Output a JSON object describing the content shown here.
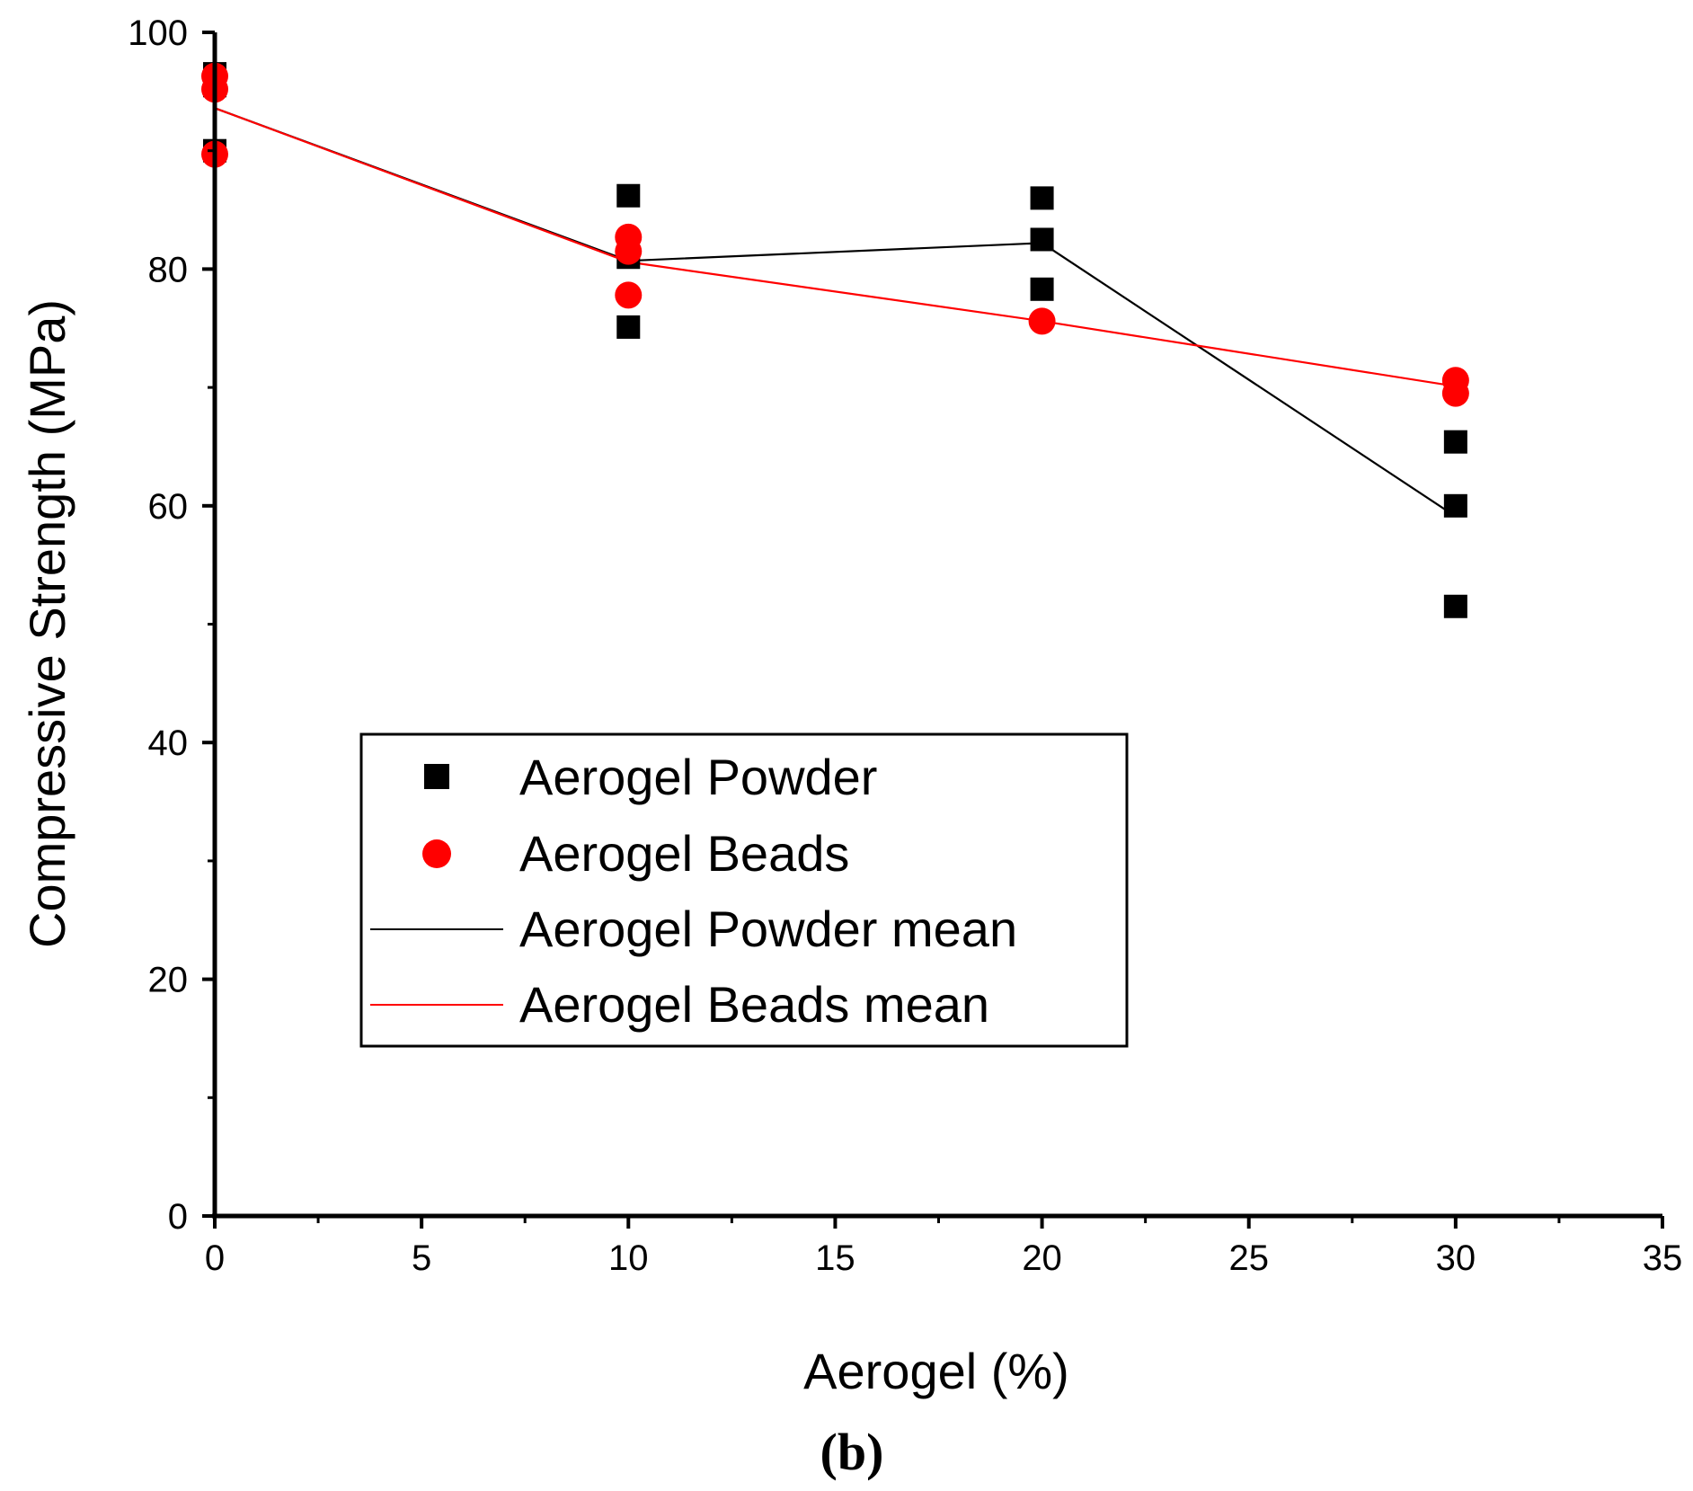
{
  "chart_data": {
    "type": "scatter",
    "title": "",
    "xlabel": "Aerogel (%)",
    "ylabel": "Compressive Strength (MPa)",
    "xlim": [
      0,
      35
    ],
    "ylim": [
      0,
      100
    ],
    "x_ticks": [
      "0",
      "5",
      "10",
      "15",
      "20",
      "25",
      "30",
      "35"
    ],
    "y_ticks": [
      "0",
      "20",
      "40",
      "60",
      "80",
      "100"
    ],
    "caption": "(b)",
    "colors": {
      "powder": "#000000",
      "beads": "#ff0000"
    },
    "series": [
      {
        "name": "Aerogel Powder",
        "kind": "points",
        "marker": "square",
        "points": [
          {
            "x": 0,
            "y": 96.5
          },
          {
            "x": 0,
            "y": 95.5
          },
          {
            "x": 0,
            "y": 90
          },
          {
            "x": 10,
            "y": 86.2
          },
          {
            "x": 10,
            "y": 81
          },
          {
            "x": 10,
            "y": 75.1
          },
          {
            "x": 20,
            "y": 86
          },
          {
            "x": 20,
            "y": 82.5
          },
          {
            "x": 20,
            "y": 78.3
          },
          {
            "x": 30,
            "y": 65.4
          },
          {
            "x": 30,
            "y": 60
          },
          {
            "x": 30,
            "y": 51.5
          }
        ]
      },
      {
        "name": "Aerogel Beads",
        "kind": "points",
        "marker": "circle",
        "points": [
          {
            "x": 0,
            "y": 96.3
          },
          {
            "x": 0,
            "y": 95.2
          },
          {
            "x": 0,
            "y": 89.7
          },
          {
            "x": 10,
            "y": 82.7
          },
          {
            "x": 10,
            "y": 81.5
          },
          {
            "x": 10,
            "y": 77.8
          },
          {
            "x": 20,
            "y": 75.6
          },
          {
            "x": 30,
            "y": 70.6
          },
          {
            "x": 30,
            "y": 69.5
          }
        ]
      },
      {
        "name": "Aerogel Powder mean",
        "kind": "line",
        "points": [
          {
            "x": 0,
            "y": 93.6
          },
          {
            "x": 10,
            "y": 80.7
          },
          {
            "x": 20,
            "y": 82.2
          },
          {
            "x": 30,
            "y": 59.1
          }
        ]
      },
      {
        "name": "Aerogel Beads mean",
        "kind": "line",
        "points": [
          {
            "x": 0,
            "y": 93.6
          },
          {
            "x": 10,
            "y": 80.6
          },
          {
            "x": 20,
            "y": 75.6
          },
          {
            "x": 30,
            "y": 70.1
          }
        ]
      }
    ],
    "legend": [
      {
        "label": "Aerogel Powder",
        "symbol": "square",
        "color": "#000000"
      },
      {
        "label": "Aerogel Beads",
        "symbol": "circle",
        "color": "#ff0000"
      },
      {
        "label": "Aerogel Powder mean",
        "symbol": "line",
        "color": "#000000"
      },
      {
        "label": "Aerogel Beads mean",
        "symbol": "line",
        "color": "#ff0000"
      }
    ],
    "legend_position": "center-left"
  }
}
